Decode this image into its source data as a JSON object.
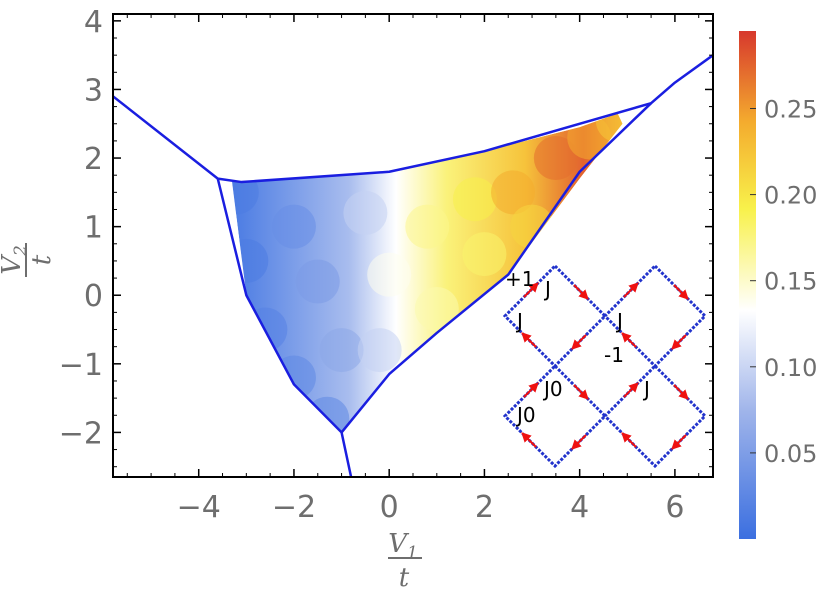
{
  "chart_data": {
    "type": "heatmap",
    "title": "",
    "xlabel": "V1/t",
    "ylabel": "V2/t",
    "xlim": [
      -5.8,
      6.8
    ],
    "ylim": [
      -2.65,
      4.1
    ],
    "xticks": [
      -4,
      -2,
      0,
      2,
      4,
      6
    ],
    "xtick_labels": [
      "−4",
      "−2",
      "0",
      "2",
      "4",
      "6"
    ],
    "yticks": [
      -2,
      -1,
      0,
      1,
      2,
      3,
      4
    ],
    "ytick_labels": [
      "−2",
      "−1",
      "0",
      "1",
      "2",
      "3",
      "4"
    ],
    "colorbar": {
      "range": [
        0.0,
        0.295
      ],
      "ticks": [
        0.05,
        0.1,
        0.15,
        0.2,
        0.25
      ],
      "tick_labels": [
        "0.05",
        "0.10",
        "0.15",
        "0.20",
        "0.25"
      ],
      "colors": [
        "#3b6fe0",
        "#ffffff",
        "#f8f14b",
        "#f4ac2e",
        "#d7382d"
      ]
    },
    "phase_boundaries": [
      {
        "points": [
          [
            -5.8,
            2.9
          ],
          [
            -3.6,
            1.7
          ],
          [
            -3.1,
            1.65
          ],
          [
            0.0,
            1.8
          ],
          [
            2.0,
            2.1
          ],
          [
            5.5,
            2.8
          ],
          [
            6.0,
            3.1
          ],
          [
            6.8,
            3.5
          ]
        ]
      },
      {
        "points": [
          [
            -3.6,
            1.7
          ],
          [
            -3.0,
            0.0
          ],
          [
            -2.0,
            -1.3
          ],
          [
            -1.0,
            -2.0
          ],
          [
            -0.8,
            -2.65
          ]
        ]
      },
      {
        "points": [
          [
            -1.0,
            -2.0
          ],
          [
            0.0,
            -1.15
          ],
          [
            1.0,
            -0.55
          ],
          [
            2.5,
            0.3
          ],
          [
            4.0,
            1.8
          ],
          [
            5.5,
            2.8
          ]
        ]
      }
    ],
    "heat_samples": [
      {
        "x": -3.2,
        "y": 1.5,
        "v": 0.02
      },
      {
        "x": -3.0,
        "y": 0.5,
        "v": 0.02
      },
      {
        "x": -2.6,
        "y": -0.5,
        "v": 0.03
      },
      {
        "x": -2.0,
        "y": -1.2,
        "v": 0.04
      },
      {
        "x": -1.3,
        "y": -1.8,
        "v": 0.04
      },
      {
        "x": -2.0,
        "y": 1.0,
        "v": 0.05
      },
      {
        "x": -1.5,
        "y": 0.2,
        "v": 0.07
      },
      {
        "x": -1.0,
        "y": -0.8,
        "v": 0.09
      },
      {
        "x": -0.5,
        "y": 1.2,
        "v": 0.12
      },
      {
        "x": 0.0,
        "y": 0.3,
        "v": 0.14
      },
      {
        "x": -0.2,
        "y": -0.8,
        "v": 0.12
      },
      {
        "x": 0.8,
        "y": 1.0,
        "v": 0.17
      },
      {
        "x": 1.0,
        "y": -0.2,
        "v": 0.16
      },
      {
        "x": 1.8,
        "y": 1.4,
        "v": 0.19
      },
      {
        "x": 2.0,
        "y": 0.6,
        "v": 0.18
      },
      {
        "x": 2.6,
        "y": 1.5,
        "v": 0.24
      },
      {
        "x": 3.0,
        "y": 1.0,
        "v": 0.21
      },
      {
        "x": 3.5,
        "y": 2.0,
        "v": 0.27
      },
      {
        "x": 4.2,
        "y": 2.3,
        "v": 0.24
      },
      {
        "x": 4.8,
        "y": 2.55,
        "v": 0.22
      }
    ],
    "inset": {
      "description": "square lattice with red arrows",
      "labels": [
        "+1",
        "J",
        "J",
        "J",
        "-1",
        "J0",
        "J",
        "J0"
      ]
    }
  }
}
